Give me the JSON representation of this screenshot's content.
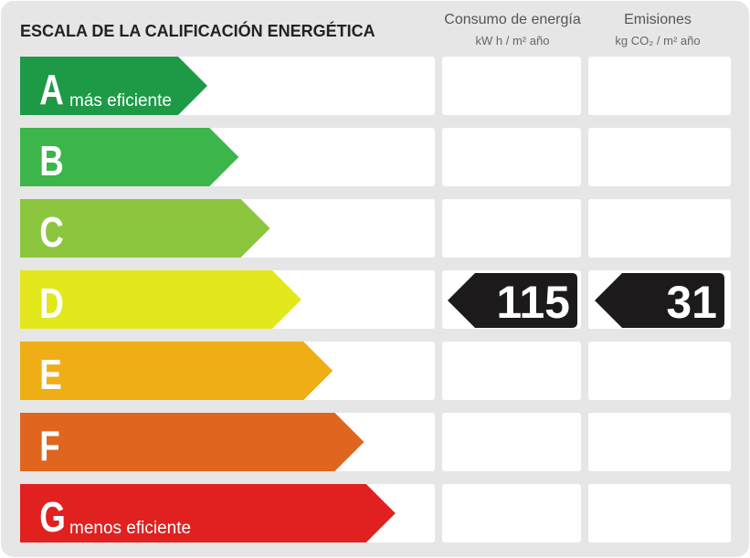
{
  "header": {
    "title": "ESCALA DE LA CALIFICACIÓN ENERGÉTICA"
  },
  "columns": [
    {
      "title": "Consumo de energía",
      "unit": "kW h / m² año"
    },
    {
      "title": "Emisiones",
      "unit": "kg CO₂ / m² año"
    }
  ],
  "rows": [
    {
      "letter": "A",
      "note": "más eficiente",
      "color": "#1e9a47"
    },
    {
      "letter": "B",
      "color": "#3cb54a"
    },
    {
      "letter": "C",
      "color": "#8cc63f"
    },
    {
      "letter": "D",
      "color": "#e3e81c",
      "consumption": 115,
      "emissions": 31
    },
    {
      "letter": "E",
      "color": "#efad16"
    },
    {
      "letter": "F",
      "color": "#e0651e"
    },
    {
      "letter": "G",
      "note": "menos eficiente",
      "color": "#e1211f"
    }
  ]
}
